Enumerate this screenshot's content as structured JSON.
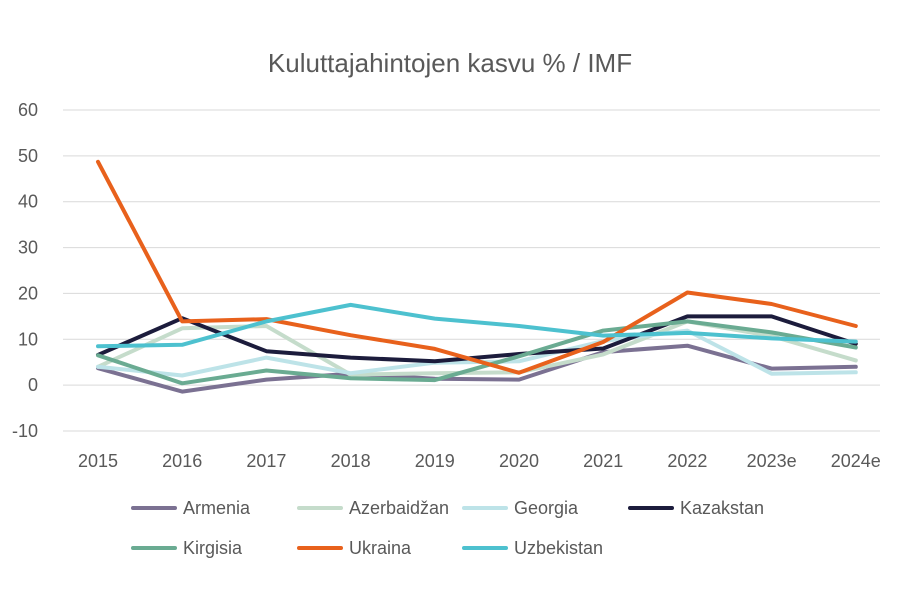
{
  "chart_data": {
    "type": "line",
    "title": "Kuluttajahintojen kasvu % / IMF",
    "xlabel": "",
    "ylabel": "",
    "categories": [
      "2015",
      "2016",
      "2017",
      "2018",
      "2019",
      "2020",
      "2021",
      "2022",
      "2023e",
      "2024e"
    ],
    "ylim": [
      -10,
      60
    ],
    "yticks": [
      60,
      50,
      40,
      30,
      20,
      10,
      0,
      -10
    ],
    "grid": true,
    "legend_position": "bottom",
    "series": [
      {
        "name": "Armenia",
        "color": "#7b7192",
        "values": [
          3.7,
          -1.4,
          1.2,
          2.5,
          1.4,
          1.2,
          7.2,
          8.6,
          3.6,
          4.0
        ]
      },
      {
        "name": "Azerbaidžan",
        "color": "#c5dccb",
        "values": [
          4.0,
          12.4,
          12.9,
          2.3,
          2.6,
          2.8,
          6.7,
          13.9,
          10.7,
          5.4
        ]
      },
      {
        "name": "Georgia",
        "color": "#bde3e8",
        "values": [
          4.0,
          2.1,
          6.0,
          2.6,
          4.9,
          5.2,
          9.6,
          11.9,
          2.5,
          2.8
        ]
      },
      {
        "name": "Kazakstan",
        "color": "#1c1c3c",
        "values": [
          6.6,
          14.6,
          7.4,
          6.0,
          5.2,
          6.8,
          8.0,
          15.0,
          15.0,
          9.0
        ]
      },
      {
        "name": "Kirgisia",
        "color": "#6aab92",
        "values": [
          6.5,
          0.4,
          3.2,
          1.5,
          1.1,
          6.3,
          11.9,
          13.9,
          11.5,
          8.2
        ]
      },
      {
        "name": "Ukraina",
        "color": "#e8611c",
        "values": [
          48.7,
          13.9,
          14.4,
          10.9,
          7.9,
          2.7,
          9.4,
          20.2,
          17.7,
          12.9
        ]
      },
      {
        "name": "Uzbekistan",
        "color": "#4dc1cf",
        "values": [
          8.5,
          8.8,
          13.9,
          17.5,
          14.5,
          12.9,
          10.8,
          11.4,
          10.2,
          9.5
        ]
      }
    ]
  }
}
